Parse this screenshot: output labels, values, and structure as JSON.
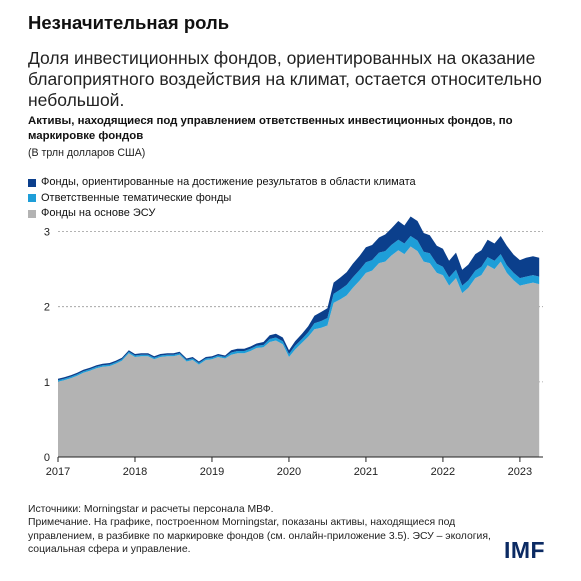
{
  "header": {
    "headline": "Незначительная роль",
    "subhead": "Доля инвестиционных фондов, ориентированных на оказание благоприятного воздействия на климат, остается относительно небольшой."
  },
  "chart_data": {
    "type": "area",
    "stacked": true,
    "title": "Активы, находящиеся под управлением ответственных инвестиционных фондов, по маркировке фондов",
    "units": "(В трлн долларов США)",
    "xlabel": "",
    "ylabel": "",
    "ylim": [
      0,
      3.1
    ],
    "xlim": [
      2017.0,
      2023.3
    ],
    "yticks": [
      0,
      1,
      2,
      3
    ],
    "xticks": [
      2017,
      2018,
      2019,
      2020,
      2021,
      2022,
      2023
    ],
    "legend_position": "top-left",
    "x": [
      2017.0,
      2017.08,
      2017.17,
      2017.25,
      2017.33,
      2017.42,
      2017.5,
      2017.58,
      2017.67,
      2017.75,
      2017.83,
      2017.92,
      2018.0,
      2018.08,
      2018.17,
      2018.25,
      2018.33,
      2018.42,
      2018.5,
      2018.58,
      2018.67,
      2018.75,
      2018.83,
      2018.92,
      2019.0,
      2019.08,
      2019.17,
      2019.25,
      2019.33,
      2019.42,
      2019.5,
      2019.58,
      2019.67,
      2019.75,
      2019.83,
      2019.92,
      2020.0,
      2020.08,
      2020.17,
      2020.25,
      2020.33,
      2020.42,
      2020.5,
      2020.58,
      2020.67,
      2020.75,
      2020.83,
      2020.92,
      2021.0,
      2021.08,
      2021.17,
      2021.25,
      2021.33,
      2021.42,
      2021.5,
      2021.58,
      2021.67,
      2021.75,
      2021.83,
      2021.92,
      2022.0,
      2022.08,
      2022.17,
      2022.25,
      2022.33,
      2022.42,
      2022.5,
      2022.58,
      2022.67,
      2022.75,
      2022.83,
      2022.92,
      2023.0,
      2023.08,
      2023.17,
      2023.25
    ],
    "series": [
      {
        "name": "Фонды на основе ЭСУ",
        "color": "#b3b3b3",
        "values": [
          1.0,
          1.02,
          1.05,
          1.08,
          1.12,
          1.15,
          1.18,
          1.2,
          1.21,
          1.24,
          1.28,
          1.38,
          1.33,
          1.34,
          1.34,
          1.3,
          1.33,
          1.34,
          1.34,
          1.36,
          1.27,
          1.29,
          1.23,
          1.29,
          1.3,
          1.33,
          1.31,
          1.36,
          1.38,
          1.38,
          1.41,
          1.45,
          1.46,
          1.53,
          1.55,
          1.5,
          1.33,
          1.43,
          1.52,
          1.6,
          1.7,
          1.72,
          1.75,
          2.05,
          2.1,
          2.15,
          2.25,
          2.35,
          2.45,
          2.48,
          2.58,
          2.6,
          2.68,
          2.75,
          2.7,
          2.8,
          2.74,
          2.6,
          2.58,
          2.45,
          2.42,
          2.28,
          2.38,
          2.18,
          2.25,
          2.38,
          2.42,
          2.55,
          2.5,
          2.6,
          2.45,
          2.35,
          2.28,
          2.3,
          2.32,
          2.3
        ]
      },
      {
        "name": "Ответственные тематические фонды",
        "color": "#1e9ed8",
        "values": [
          0.02,
          0.02,
          0.02,
          0.02,
          0.02,
          0.02,
          0.02,
          0.02,
          0.02,
          0.02,
          0.02,
          0.02,
          0.02,
          0.02,
          0.02,
          0.02,
          0.02,
          0.02,
          0.02,
          0.02,
          0.02,
          0.02,
          0.02,
          0.02,
          0.02,
          0.02,
          0.02,
          0.03,
          0.03,
          0.03,
          0.03,
          0.03,
          0.03,
          0.04,
          0.04,
          0.04,
          0.04,
          0.05,
          0.05,
          0.06,
          0.08,
          0.09,
          0.1,
          0.12,
          0.13,
          0.14,
          0.14,
          0.14,
          0.14,
          0.14,
          0.14,
          0.14,
          0.14,
          0.14,
          0.14,
          0.14,
          0.14,
          0.13,
          0.13,
          0.12,
          0.11,
          0.11,
          0.11,
          0.1,
          0.1,
          0.1,
          0.11,
          0.11,
          0.11,
          0.1,
          0.1,
          0.1,
          0.1,
          0.1,
          0.1,
          0.1
        ]
      },
      {
        "name": "Фонды, ориентированные на достижение результатов в области климата",
        "color": "#0b3f8c",
        "values": [
          0.02,
          0.02,
          0.02,
          0.02,
          0.02,
          0.02,
          0.02,
          0.02,
          0.02,
          0.02,
          0.02,
          0.02,
          0.02,
          0.02,
          0.02,
          0.02,
          0.02,
          0.02,
          0.02,
          0.02,
          0.02,
          0.02,
          0.02,
          0.02,
          0.02,
          0.02,
          0.02,
          0.03,
          0.03,
          0.03,
          0.03,
          0.03,
          0.04,
          0.05,
          0.05,
          0.05,
          0.05,
          0.06,
          0.07,
          0.08,
          0.1,
          0.12,
          0.13,
          0.15,
          0.16,
          0.17,
          0.18,
          0.19,
          0.2,
          0.2,
          0.2,
          0.22,
          0.22,
          0.25,
          0.24,
          0.26,
          0.26,
          0.25,
          0.24,
          0.24,
          0.24,
          0.22,
          0.23,
          0.21,
          0.21,
          0.22,
          0.22,
          0.23,
          0.23,
          0.24,
          0.26,
          0.24,
          0.24,
          0.25,
          0.25,
          0.25
        ]
      }
    ]
  },
  "footer": {
    "sources": "Источники: Morningstar и расчеты персонала МВФ.",
    "note": "Примечание. На графике, построенном Morningstar, показаны активы, находящиеся под управлением, в разбивке по маркировке фондов (см. онлайн-приложение 3.5). ЭСУ – экология, социальная сфера и управление."
  },
  "logo": {
    "text": "IMF"
  }
}
